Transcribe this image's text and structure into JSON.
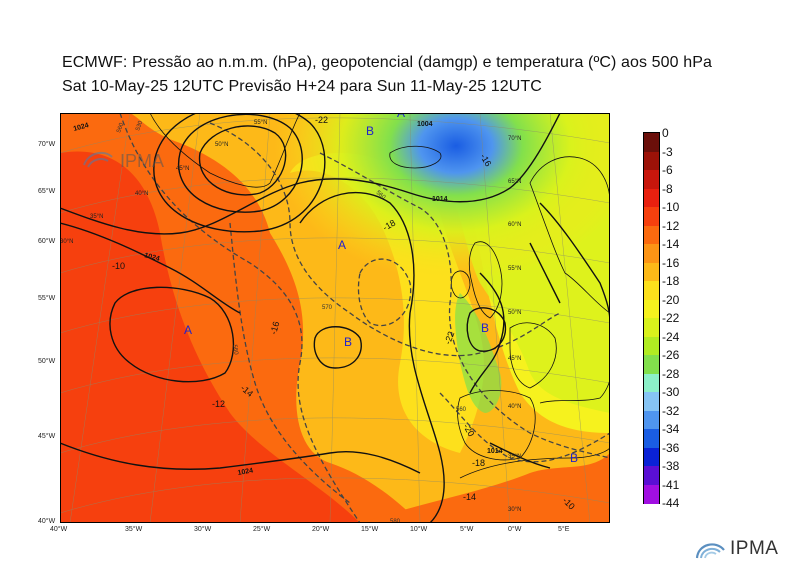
{
  "title_line1": "ECMWF:  Pressão ao n.m.m. (hPa), geopotencial (damgp) e temperatura (ºC) aos 500 hPa",
  "title_line2": "Sat 10-May-25 12UTC Previsão H+24 para Sun 11-May-25 12UTC",
  "watermark": "IPMA",
  "logo_text": "IPMA",
  "lon_labels": [
    "40°W",
    "35°W",
    "30°W",
    "25°W",
    "20°W",
    "15°W",
    "10°W",
    "5°W",
    "0°W",
    "5°E"
  ],
  "lat_labels": [
    "70°W",
    "65°W",
    "60°W",
    "55°W",
    "50°W",
    "45°W",
    "40°W"
  ],
  "grid_labels_inner": [
    "55°N",
    "50°N",
    "45°N",
    "40°N",
    "35°N",
    "30°N",
    "70°N",
    "65°N",
    "60°N",
    "55°N",
    "50°N",
    "45°N",
    "40°N",
    "35°N",
    "30°N"
  ],
  "centers": [
    {
      "label": "A",
      "kind": "high"
    },
    {
      "label": "A",
      "kind": "high"
    },
    {
      "label": "B",
      "kind": "low"
    },
    {
      "label": "B",
      "kind": "low"
    },
    {
      "label": "B",
      "kind": "low"
    },
    {
      "label": "B",
      "kind": "low"
    },
    {
      "label": "A",
      "kind": "high"
    }
  ],
  "isobar_labels": [
    "1024",
    "1024",
    "1024",
    "1014",
    "1014",
    "1004"
  ],
  "temp_labels": [
    "-10",
    "-12",
    "-14",
    "-16",
    "-18",
    "-20",
    "-22",
    "-22",
    "-14",
    "-10",
    "-18",
    "-16"
  ],
  "geo_labels": [
    "560",
    "570",
    "560",
    "560",
    "560",
    "580",
    "530"
  ],
  "legend": {
    "labels": [
      "0",
      "-3",
      "-6",
      "-8",
      "-10",
      "-12",
      "-14",
      "-16",
      "-18",
      "-20",
      "-22",
      "-24",
      "-26",
      "-28",
      "-30",
      "-32",
      "-34",
      "-36",
      "-38",
      "-41",
      "-44"
    ],
    "colors": [
      "#6b0f0a",
      "#9c1208",
      "#c8160c",
      "#e8200f",
      "#f6400e",
      "#fb6a0f",
      "#fc9415",
      "#fdb918",
      "#fde01c",
      "#f6f21e",
      "#d9f21c",
      "#b1ec22",
      "#82e04c",
      "#8cf0c8",
      "#86c4f4",
      "#4f95ef",
      "#1a5de3",
      "#0a22d6",
      "#5a0fd4",
      "#a10fe2"
    ]
  }
}
